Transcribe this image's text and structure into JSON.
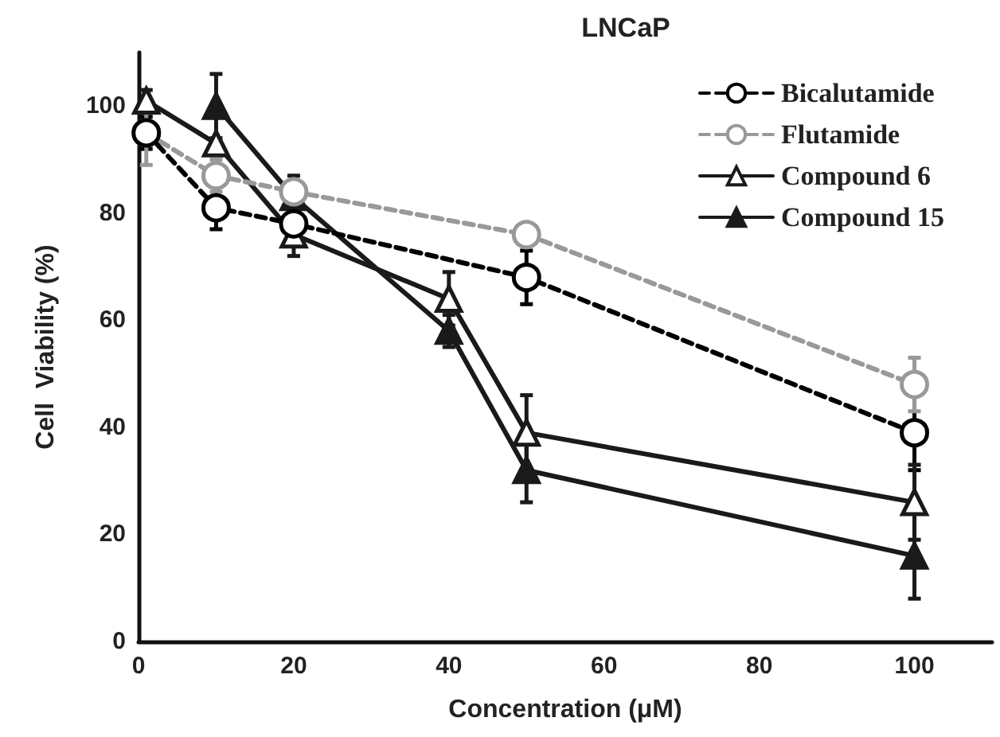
{
  "chart_data": {
    "type": "line",
    "title": "LNCaP",
    "xlabel": "Concentration (μM)",
    "ylabel": "Cell  Viability (%)",
    "xlim": [
      0,
      110
    ],
    "xticks": [
      0,
      20,
      40,
      60,
      80,
      100
    ],
    "ylim": [
      0,
      110
    ],
    "yticks": [
      0,
      20,
      40,
      60,
      80,
      100
    ],
    "grid": false,
    "legend": "top right",
    "series": [
      {
        "name": "Bicalutamide",
        "color": "#000000",
        "marker": "circle",
        "line_style": "dashed",
        "x": [
          1,
          10,
          20,
          50,
          100
        ],
        "values": [
          95,
          81,
          78,
          68,
          39
        ],
        "errors": [
          3,
          4,
          null,
          5,
          7
        ]
      },
      {
        "name": "Flutamide",
        "color": "#999999",
        "marker": "circle",
        "line_style": "dashed",
        "x": [
          1,
          10,
          20,
          50,
          100
        ],
        "values": [
          95,
          87,
          84,
          76,
          48
        ],
        "errors": [
          6,
          3,
          null,
          null,
          5
        ]
      },
      {
        "name": "Compound 6",
        "color": "#1a1a1a",
        "marker": "triangle",
        "line_style": "solid",
        "x": [
          1,
          10,
          20,
          40,
          50,
          100
        ],
        "values": [
          101,
          93,
          76,
          64,
          39,
          26
        ],
        "errors": [
          2,
          null,
          4,
          5,
          7,
          7
        ]
      },
      {
        "name": "Compound 15",
        "color": "#1a1a1a",
        "marker": "triangle",
        "line_style": "solid",
        "x": [
          10,
          20,
          40,
          50,
          100
        ],
        "values": [
          100,
          83,
          58,
          32,
          16
        ],
        "errors": [
          6,
          4,
          3,
          6,
          8
        ]
      }
    ]
  }
}
